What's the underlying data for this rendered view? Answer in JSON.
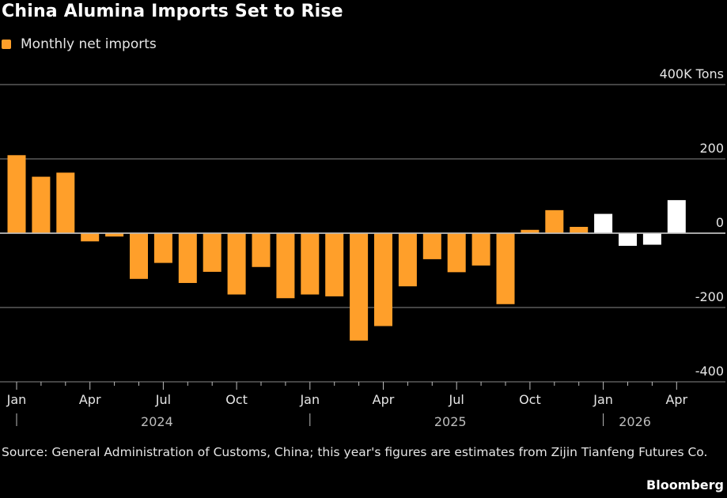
{
  "chart_data": {
    "type": "bar",
    "title": "China Alumina Imports Set to Rise",
    "legend": [
      {
        "name": "Monthly net imports",
        "color": "#ff9f2a"
      }
    ],
    "unit_label": "400K Tons",
    "ylim": [
      -400,
      400
    ],
    "yticks": [
      400,
      200,
      0,
      -200,
      -400
    ],
    "ytick_labels": [
      "400K Tons",
      "200",
      "0",
      "-200",
      "-400"
    ],
    "grid": true,
    "categories": [
      "2024-01",
      "2024-02",
      "2024-03",
      "2024-04",
      "2024-05",
      "2024-06",
      "2024-07",
      "2024-08",
      "2024-09",
      "2024-10",
      "2024-11",
      "2024-12",
      "2025-01",
      "2025-02",
      "2025-03",
      "2025-04",
      "2025-05",
      "2025-06",
      "2025-07",
      "2025-08",
      "2025-09",
      "2025-10",
      "2025-11",
      "2025-12",
      "2026-01",
      "2026-02",
      "2026-03",
      "2026-04"
    ],
    "values": [
      210,
      152,
      163,
      -22,
      -9,
      -123,
      -80,
      -134,
      -104,
      -165,
      -91,
      -175,
      -165,
      -170,
      -289,
      -250,
      -143,
      -70,
      -105,
      -87,
      -191,
      9,
      62,
      17,
      52,
      -34,
      -31,
      89
    ],
    "estimate_from_index": 24,
    "colors": {
      "actual": "#ff9f2a",
      "estimate": "#ffffff"
    },
    "xtick_labels": [
      {
        "index": 0,
        "label": "Jan"
      },
      {
        "index": 3,
        "label": "Apr"
      },
      {
        "index": 6,
        "label": "Jul"
      },
      {
        "index": 9,
        "label": "Oct"
      },
      {
        "index": 12,
        "label": "Jan"
      },
      {
        "index": 15,
        "label": "Apr"
      },
      {
        "index": 18,
        "label": "Jul"
      },
      {
        "index": 21,
        "label": "Oct"
      },
      {
        "index": 24,
        "label": "Jan"
      },
      {
        "index": 27,
        "label": "Apr"
      }
    ],
    "year_labels": [
      {
        "start_index": 0,
        "label": "2024"
      },
      {
        "start_index": 12,
        "label": "2025"
      },
      {
        "start_index": 24,
        "label": "2026"
      }
    ],
    "legend_placement": "top-left"
  },
  "footer": {
    "source": "Source: General Administration of Customs, China; this year's figures are estimates from Zijin Tianfeng Futures Co.",
    "brand": "Bloomberg"
  }
}
